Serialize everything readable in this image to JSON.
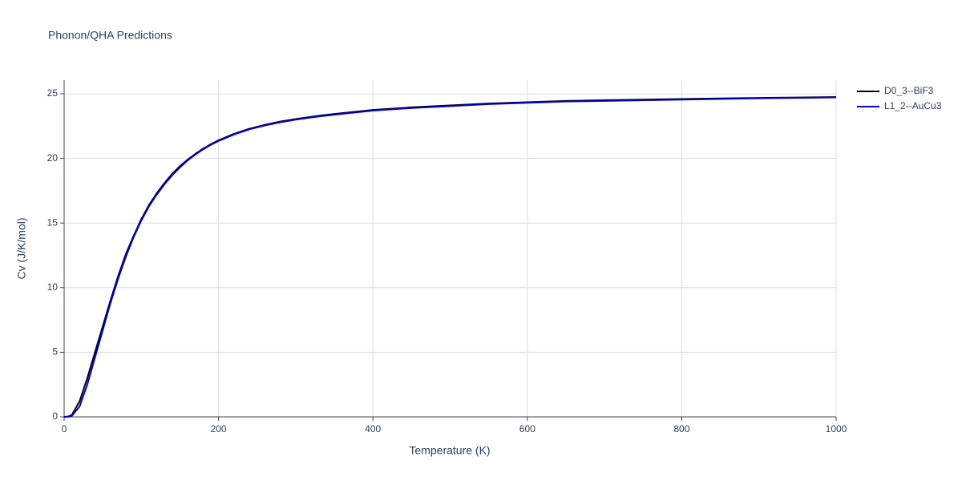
{
  "chart_data": {
    "type": "line",
    "title": "Phonon/QHA Predictions",
    "x_label": "Temperature (K)",
    "y_label": "Cv (J/K/mol)",
    "x": [
      0,
      5,
      10,
      20,
      30,
      40,
      50,
      60,
      70,
      80,
      90,
      100,
      110,
      120,
      130,
      140,
      150,
      160,
      170,
      180,
      190,
      200,
      220,
      240,
      260,
      280,
      300,
      330,
      360,
      400,
      450,
      500,
      550,
      600,
      650,
      700,
      800,
      900,
      1000
    ],
    "series": [
      {
        "name": "D0_3--BiF3",
        "color": "#000000",
        "values": [
          0,
          0.02,
          0.15,
          1.2,
          3.0,
          5.0,
          7.0,
          9.0,
          10.9,
          12.6,
          14.0,
          15.3,
          16.4,
          17.3,
          18.1,
          18.8,
          19.4,
          19.9,
          20.35,
          20.75,
          21.1,
          21.4,
          21.9,
          22.3,
          22.6,
          22.85,
          23.05,
          23.3,
          23.5,
          23.75,
          23.95,
          24.1,
          24.25,
          24.35,
          24.45,
          24.5,
          24.6,
          24.68,
          24.75
        ]
      },
      {
        "name": "L1_2--AuCu3",
        "color": "#0000cd",
        "values": [
          0,
          0.01,
          0.08,
          0.8,
          2.5,
          4.6,
          6.7,
          8.8,
          10.7,
          12.4,
          13.9,
          15.2,
          16.3,
          17.2,
          18.0,
          18.7,
          19.3,
          19.85,
          20.3,
          20.7,
          21.05,
          21.35,
          21.85,
          22.25,
          22.55,
          22.8,
          23.0,
          23.25,
          23.45,
          23.7,
          23.9,
          24.05,
          24.2,
          24.3,
          24.4,
          24.45,
          24.55,
          24.65,
          24.72
        ]
      }
    ],
    "xlim": [
      0,
      1000
    ],
    "xticks": [
      0,
      200,
      400,
      600,
      800,
      1000
    ],
    "ylim": [
      0,
      25
    ],
    "yticks": [
      0,
      5,
      10,
      15,
      20,
      25
    ],
    "grid": true
  }
}
